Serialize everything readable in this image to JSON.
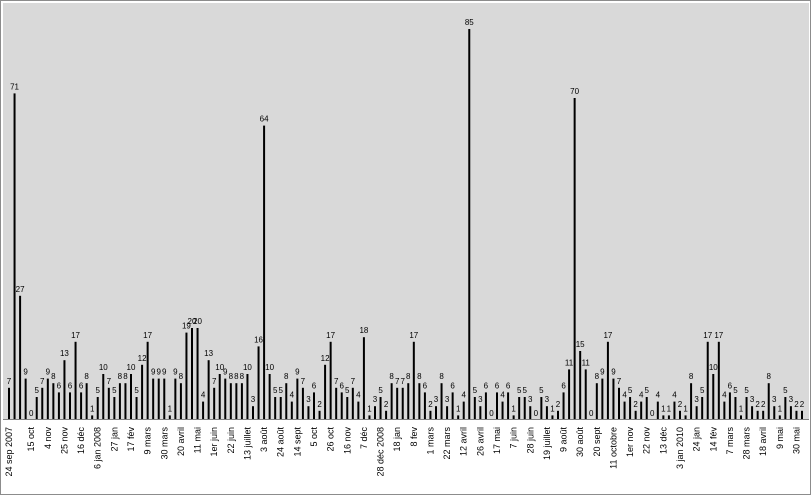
{
  "chart_data": {
    "type": "bar",
    "title": "",
    "xlabel": "",
    "ylabel": "",
    "ylim": [
      0,
      90
    ],
    "grid": false,
    "legend": "none",
    "colors": {
      "plot_background": "#d9d9d9",
      "bars": "#000000",
      "page_background": "#ffffff"
    },
    "tick_labels": [
      {
        "index": 0,
        "label": "24 sep 2007"
      },
      {
        "index": 4,
        "label": "15 oct"
      },
      {
        "index": 7,
        "label": "4 nov"
      },
      {
        "index": 10,
        "label": "25 nov"
      },
      {
        "index": 13,
        "label": "16 déc"
      },
      {
        "index": 16,
        "label": "6 jan 2008"
      },
      {
        "index": 19,
        "label": "27 jan"
      },
      {
        "index": 22,
        "label": "17 fév"
      },
      {
        "index": 25,
        "label": "9 mars"
      },
      {
        "index": 28,
        "label": "30 mars"
      },
      {
        "index": 31,
        "label": "20 avril"
      },
      {
        "index": 34,
        "label": "11 mai"
      },
      {
        "index": 37,
        "label": "1er juin"
      },
      {
        "index": 40,
        "label": "22 juin"
      },
      {
        "index": 43,
        "label": "13 juillet"
      },
      {
        "index": 46,
        "label": "3 août"
      },
      {
        "index": 49,
        "label": "24 août"
      },
      {
        "index": 52,
        "label": "14 sept"
      },
      {
        "index": 55,
        "label": "5 oct"
      },
      {
        "index": 58,
        "label": "26 oct"
      },
      {
        "index": 61,
        "label": "16 nov"
      },
      {
        "index": 64,
        "label": "7 déc"
      },
      {
        "index": 67,
        "label": "28 déc 2008"
      },
      {
        "index": 70,
        "label": "18 jan"
      },
      {
        "index": 73,
        "label": "8 fev"
      },
      {
        "index": 76,
        "label": "1 mars"
      },
      {
        "index": 79,
        "label": "22 mars"
      },
      {
        "index": 82,
        "label": "12 avril"
      },
      {
        "index": 85,
        "label": "26 avril"
      },
      {
        "index": 88,
        "label": "17 mai"
      },
      {
        "index": 91,
        "label": "7 juin"
      },
      {
        "index": 94,
        "label": "28 juin"
      },
      {
        "index": 97,
        "label": "19 juillet"
      },
      {
        "index": 100,
        "label": "9 août"
      },
      {
        "index": 103,
        "label": "30 août"
      },
      {
        "index": 106,
        "label": "20 sept"
      },
      {
        "index": 109,
        "label": "11 octobre"
      },
      {
        "index": 112,
        "label": "1er nov"
      },
      {
        "index": 115,
        "label": "22 nov"
      },
      {
        "index": 118,
        "label": "13 déc"
      },
      {
        "index": 121,
        "label": "3 jan 2010"
      },
      {
        "index": 124,
        "label": "24 jan"
      },
      {
        "index": 127,
        "label": "14 fév"
      },
      {
        "index": 130,
        "label": "7 mars"
      },
      {
        "index": 133,
        "label": "28 mars"
      },
      {
        "index": 136,
        "label": "18 avril"
      },
      {
        "index": 139,
        "label": "9 mai"
      },
      {
        "index": 142,
        "label": "30 mai"
      }
    ],
    "values": [
      7,
      71,
      27,
      9,
      0,
      5,
      7,
      9,
      8,
      6,
      13,
      6,
      17,
      6,
      8,
      1,
      5,
      10,
      7,
      5,
      8,
      8,
      10,
      5,
      12,
      17,
      9,
      9,
      9,
      1,
      9,
      8,
      19,
      20,
      20,
      4,
      13,
      7,
      10,
      9,
      8,
      8,
      8,
      10,
      3,
      16,
      64,
      10,
      5,
      5,
      8,
      4,
      9,
      7,
      3,
      6,
      2,
      12,
      17,
      7,
      6,
      5,
      7,
      4,
      18,
      1,
      3,
      5,
      2,
      8,
      7,
      7,
      8,
      17,
      8,
      6,
      2,
      3,
      8,
      3,
      6,
      1,
      4,
      85,
      5,
      3,
      6,
      0,
      6,
      4,
      6,
      1,
      5,
      5,
      3,
      0,
      5,
      3,
      1,
      2,
      6,
      11,
      70,
      15,
      11,
      0,
      8,
      9,
      17,
      9,
      7,
      4,
      5,
      2,
      4,
      5,
      0,
      4,
      1,
      1,
      4,
      2,
      1,
      8,
      3,
      5,
      17,
      10,
      17,
      4,
      6,
      5,
      1,
      5,
      3,
      2,
      2,
      8,
      3,
      1,
      5,
      3,
      2,
      2
    ]
  }
}
